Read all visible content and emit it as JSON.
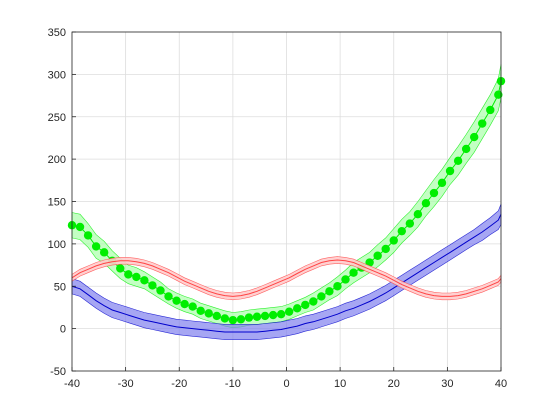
{
  "chart_data": {
    "type": "line",
    "title": "",
    "xlabel": "",
    "ylabel": "",
    "xlim": [
      -40,
      40
    ],
    "ylim": [
      -50,
      350
    ],
    "xticks": [
      -40,
      -30,
      -20,
      -10,
      0,
      10,
      20,
      30,
      40
    ],
    "yticks": [
      -50,
      0,
      50,
      100,
      150,
      200,
      250,
      300,
      350
    ],
    "grid": true,
    "legend": "none",
    "x": [
      -40,
      -38.5,
      -37,
      -35.5,
      -34,
      -32.5,
      -31,
      -29.5,
      -28,
      -26.5,
      -25,
      -23.5,
      -22,
      -20.5,
      -19,
      -17.5,
      -16,
      -14.5,
      -13,
      -11.5,
      -10,
      -8.5,
      -7,
      -5.5,
      -4,
      -2.5,
      -1,
      0.5,
      2,
      3.5,
      5,
      6.5,
      8,
      9.5,
      11,
      12.5,
      14,
      15.5,
      17,
      18.5,
      20,
      21.5,
      23,
      24.5,
      26,
      27.5,
      29,
      30.5,
      32,
      33.5,
      35,
      36.5,
      38,
      39.5,
      40
    ],
    "series": [
      {
        "style": "green-markers-with-band",
        "color": "#00ee00",
        "band_color": "#aaffaa",
        "values": [
          122,
          120,
          110,
          97,
          90,
          80,
          71,
          64,
          61,
          57,
          51,
          45,
          38,
          33,
          29,
          26,
          21,
          18,
          15,
          12,
          10,
          11,
          13,
          14,
          15,
          16,
          17,
          20,
          24,
          28,
          32,
          38,
          44,
          50,
          58,
          66,
          72,
          78,
          86,
          94,
          104,
          115,
          124,
          135,
          148,
          160,
          172,
          186,
          198,
          212,
          226,
          242,
          258,
          276,
          292
        ],
        "band": [
          15,
          15,
          14,
          14,
          13,
          12,
          12,
          11,
          11,
          10,
          10,
          10,
          9,
          9,
          9,
          9,
          9,
          9,
          9,
          9,
          9,
          9,
          9,
          9,
          9,
          9,
          9,
          9,
          9,
          9,
          10,
          10,
          10,
          11,
          11,
          12,
          12,
          12,
          13,
          13,
          14,
          14,
          14,
          15,
          15,
          16,
          16,
          16,
          17,
          17,
          18,
          18,
          18,
          19,
          20
        ]
      },
      {
        "style": "blue-line-with-band",
        "color": "#0000cc",
        "band_color": "#8080ee",
        "values": [
          50,
          47,
          40,
          33,
          27,
          22,
          19,
          16,
          13,
          10,
          8,
          6,
          4,
          2,
          1,
          0,
          -1,
          -2,
          -3,
          -4,
          -4,
          -4,
          -4,
          -4,
          -3,
          -2,
          -1,
          1,
          3,
          6,
          8,
          11,
          14,
          17,
          21,
          24,
          28,
          32,
          37,
          42,
          48,
          54,
          60,
          66,
          72,
          78,
          84,
          90,
          96,
          102,
          108,
          114,
          121,
          128,
          135
        ],
        "band": [
          9,
          9,
          9,
          9,
          9,
          9,
          9,
          9,
          9,
          9,
          9,
          9,
          9,
          9,
          9,
          9,
          9,
          9,
          9,
          9,
          9,
          9,
          9,
          9,
          9,
          9,
          9,
          9,
          9,
          9,
          9,
          9,
          9,
          9,
          9,
          9,
          9,
          9,
          9,
          9,
          9,
          9,
          9,
          9,
          9,
          9,
          9,
          9,
          9,
          9,
          9,
          10,
          10,
          11,
          12
        ]
      },
      {
        "style": "red-line-with-band",
        "color": "#ff4444",
        "band_color": "#ffcccc",
        "values": [
          60,
          66,
          70,
          74,
          77,
          79,
          80,
          80,
          79,
          77,
          74,
          70,
          66,
          61,
          56,
          52,
          48,
          44,
          41,
          39,
          38,
          39,
          41,
          44,
          48,
          52,
          56,
          60,
          65,
          70,
          74,
          78,
          80,
          81,
          80,
          78,
          74,
          70,
          66,
          62,
          57,
          52,
          48,
          44,
          41,
          39,
          38,
          38,
          39,
          41,
          44,
          47,
          51,
          55,
          59
        ],
        "band": [
          4,
          4,
          4,
          4,
          4,
          4,
          4,
          4,
          4,
          4,
          4,
          4,
          4,
          4,
          4,
          4,
          4,
          4,
          4,
          4,
          4,
          4,
          4,
          4,
          4,
          4,
          4,
          4,
          4,
          4,
          4,
          4,
          4,
          4,
          4,
          4,
          4,
          4,
          4,
          4,
          4,
          4,
          4,
          4,
          4,
          4,
          4,
          4,
          4,
          4,
          4,
          4,
          4,
          4,
          4
        ]
      }
    ]
  }
}
